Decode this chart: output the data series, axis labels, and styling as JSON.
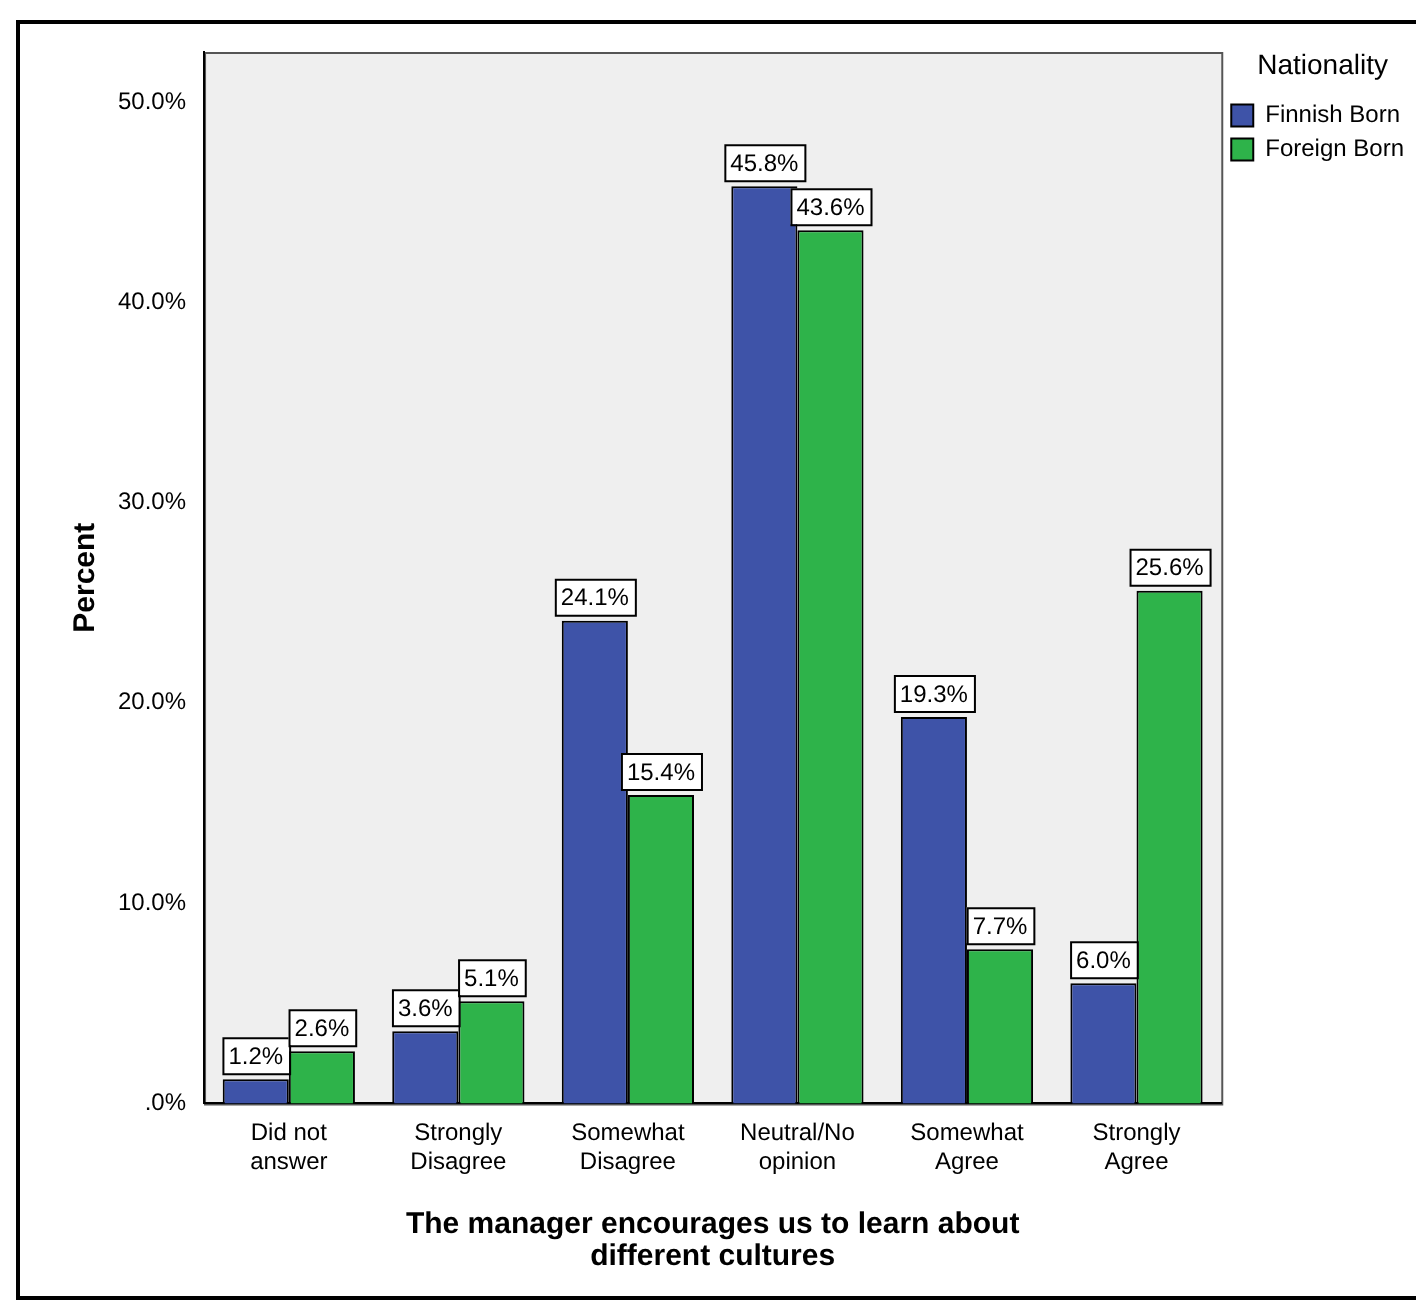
{
  "chart_data": {
    "type": "bar",
    "xlabel": "The manager encourages us to learn about different cultures",
    "ylabel": "Percent",
    "legend_title": "Nationality",
    "categories": [
      "Did not answer",
      "Strongly Disagree",
      "Somewhat Disagree",
      "Neutral/No opinion",
      "Somewhat Agree",
      "Strongly Agree"
    ],
    "series": [
      {
        "name": "Finnish Born",
        "color": "#3e53a8",
        "values": [
          1.2,
          3.6,
          24.1,
          45.8,
          19.3,
          6.0
        ],
        "value_labels": [
          "1.2%",
          "3.6%",
          "24.1%",
          "45.8%",
          "19.3%",
          "6.0%"
        ]
      },
      {
        "name": "Foreign Born",
        "color": "#2eb34a",
        "values": [
          2.6,
          5.1,
          15.4,
          43.6,
          7.7,
          25.6
        ],
        "value_labels": [
          "2.6%",
          "5.1%",
          "15.4%",
          "43.6%",
          "7.7%",
          "25.6%"
        ]
      }
    ],
    "ylim": [
      0,
      52.5
    ],
    "yticks": [
      {
        "value": 0,
        "label": ".0%"
      },
      {
        "value": 10,
        "label": "10.0%"
      },
      {
        "value": 20,
        "label": "20.0%"
      },
      {
        "value": 30,
        "label": "30.0%"
      },
      {
        "value": 40,
        "label": "40.0%"
      },
      {
        "value": 50,
        "label": "50.0%"
      }
    ],
    "grid": false,
    "legend": "top right"
  }
}
